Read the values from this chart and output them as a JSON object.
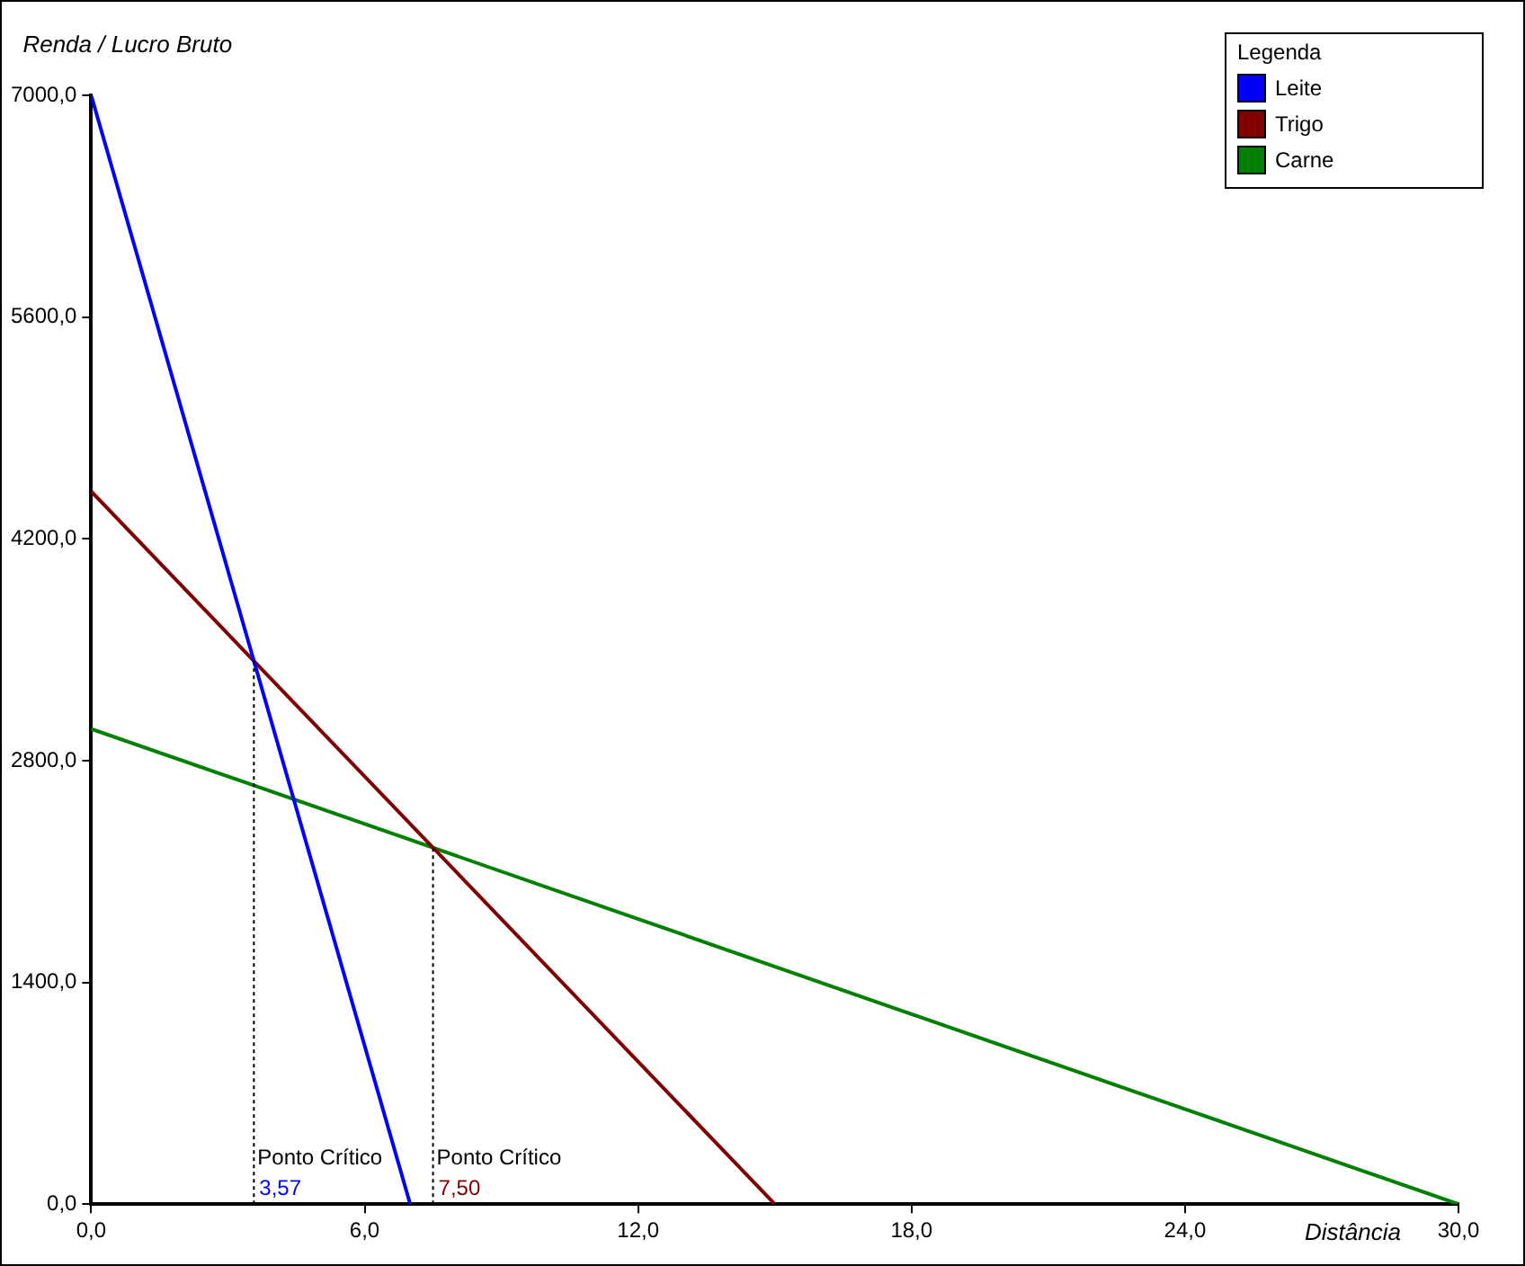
{
  "chart_data": {
    "type": "line",
    "xlabel": "Distância",
    "ylabel": "Renda / Lucro Bruto",
    "legend_title": "Legenda",
    "legend": "top right",
    "grid": false,
    "marker": "none",
    "line_style": "solid",
    "xlim": [
      0,
      30
    ],
    "ylim": [
      0,
      7000
    ],
    "xticks": [
      {
        "value": 0,
        "label": "0,0"
      },
      {
        "value": 6,
        "label": "6,0"
      },
      {
        "value": 12,
        "label": "12,0"
      },
      {
        "value": 18,
        "label": "18,0"
      },
      {
        "value": 24,
        "label": "24,0"
      },
      {
        "value": 30,
        "label": "30,0"
      }
    ],
    "yticks": [
      {
        "value": 0,
        "label": "0,0"
      },
      {
        "value": 1400,
        "label": "1400,0"
      },
      {
        "value": 2800,
        "label": "2800,0"
      },
      {
        "value": 4200,
        "label": "4200,0"
      },
      {
        "value": 5600,
        "label": "5600,0"
      },
      {
        "value": 7000,
        "label": "7000,0"
      }
    ],
    "series": [
      {
        "name": "Leite",
        "color": "#0000ff",
        "x": [
          0,
          7
        ],
        "values": [
          7000,
          0
        ]
      },
      {
        "name": "Trigo",
        "color": "#800000",
        "x": [
          0,
          15
        ],
        "values": [
          4500,
          0
        ]
      },
      {
        "name": "Carne",
        "color": "#008000",
        "x": [
          0,
          30
        ],
        "values": [
          3000,
          0
        ]
      }
    ],
    "ref_lines": [
      {
        "axis": "x",
        "value": 3.57,
        "label": "Ponto Crítico",
        "color": "#000000",
        "line_style": "dotted"
      },
      {
        "axis": "x",
        "value": 7.5,
        "label": "Ponto Crítico",
        "color": "#000000",
        "line_style": "dotted"
      }
    ],
    "annotations": [
      {
        "text": "3,57",
        "x": 3.57,
        "y": 0
      },
      {
        "text": "7,50",
        "x": 7.5,
        "y": 0
      }
    ]
  }
}
